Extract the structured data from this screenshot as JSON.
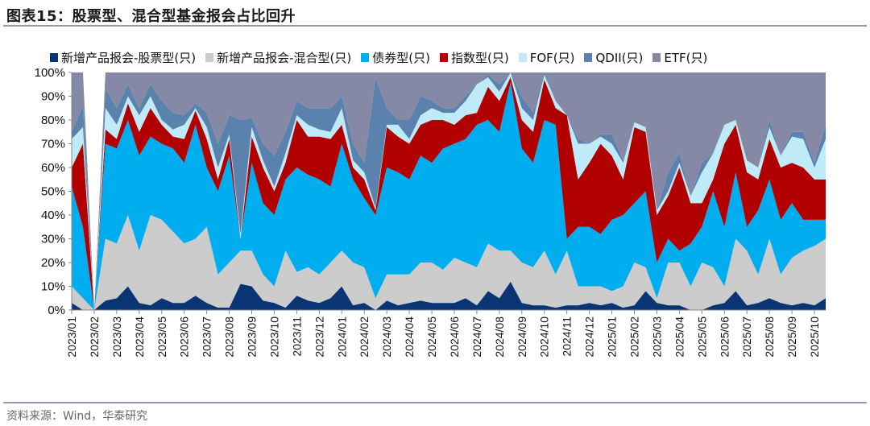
{
  "title": "图表15：股票型、混合型基金报会占比回升",
  "source": "资料来源：Wind，华泰研究",
  "chart_data": {
    "type": "area",
    "stacked": true,
    "title": "图表15：股票型、混合型基金报会占比回升",
    "xlabel": "",
    "ylabel": "",
    "ylim": [
      0,
      100
    ],
    "y_ticks": [
      "0%",
      "10%",
      "20%",
      "30%",
      "40%",
      "50%",
      "60%",
      "70%",
      "80%",
      "90%",
      "100%"
    ],
    "x_tick_labels": [
      "2023/01",
      "2023/02",
      "2023/03",
      "2023/04",
      "2023/05",
      "2023/06",
      "2023/07",
      "2023/08",
      "2023/09",
      "2023/10",
      "2023/11",
      "2023/12",
      "2024/01",
      "2024/02",
      "2024/03",
      "2024/04",
      "2024/05",
      "2024/06",
      "2024/07",
      "2024/08",
      "2024/09",
      "2024/10",
      "2024/11",
      "2024/12",
      "2025/01",
      "2025/02",
      "2025/03",
      "2025/04",
      "2025/05",
      "2025/06",
      "2025/07",
      "2025/08",
      "2025/09",
      "2025/10"
    ],
    "points_per_month": 2,
    "legend_position": "top",
    "series": [
      {
        "name": "新增产品报会-股票型(只)",
        "color": "#0a3574",
        "values": [
          3,
          0,
          0,
          4,
          5,
          10,
          3,
          2,
          5,
          3,
          3,
          6,
          3,
          1,
          1,
          11,
          10,
          4,
          3,
          1,
          6,
          4,
          3,
          5,
          10,
          2,
          3,
          0,
          4,
          2,
          3,
          4,
          3,
          3,
          3,
          5,
          2,
          8,
          5,
          12,
          3,
          2,
          2,
          1,
          2,
          2,
          3,
          2,
          3,
          1,
          2,
          8,
          3,
          2,
          2,
          0,
          0,
          2,
          3,
          8,
          2,
          3,
          5,
          3,
          2,
          3,
          2,
          5
        ]
      },
      {
        "name": "新增产品报会-混合型(只)",
        "color": "#cccccc",
        "values": [
          7,
          5,
          0,
          26,
          23,
          30,
          22,
          38,
          33,
          30,
          25,
          24,
          32,
          14,
          19,
          14,
          15,
          11,
          7,
          24,
          10,
          14,
          12,
          15,
          15,
          18,
          15,
          5,
          11,
          13,
          12,
          16,
          17,
          14,
          19,
          15,
          16,
          20,
          20,
          13,
          17,
          16,
          23,
          14,
          23,
          8,
          7,
          8,
          5,
          9,
          18,
          10,
          2,
          18,
          18,
          10,
          20,
          16,
          7,
          22,
          23,
          12,
          25,
          12,
          20,
          22,
          25,
          25
        ]
      },
      {
        "name": "债券型(只)",
        "color": "#00aeef",
        "values": [
          42,
          30,
          0,
          40,
          40,
          40,
          40,
          33,
          32,
          35,
          34,
          48,
          25,
          35,
          45,
          5,
          37,
          30,
          30,
          30,
          44,
          39,
          40,
          32,
          45,
          35,
          29,
          35,
          45,
          43,
          40,
          45,
          42,
          51,
          48,
          52,
          60,
          52,
          50,
          71,
          48,
          44,
          55,
          63,
          5,
          25,
          25,
          22,
          30,
          30,
          25,
          32,
          15,
          10,
          5,
          18,
          15,
          32,
          25,
          28,
          10,
          27,
          25,
          23,
          23,
          13,
          11,
          8
        ]
      },
      {
        "name": "指数型(只)",
        "color": "#b10000",
        "values": [
          8,
          35,
          0,
          6,
          4,
          7,
          10,
          12,
          8,
          5,
          10,
          6,
          12,
          5,
          7,
          0,
          11,
          15,
          10,
          7,
          20,
          16,
          18,
          20,
          8,
          5,
          8,
          2,
          17,
          15,
          15,
          13,
          18,
          12,
          8,
          10,
          5,
          14,
          13,
          2,
          12,
          13,
          17,
          7,
          52,
          20,
          27,
          38,
          27,
          15,
          32,
          25,
          20,
          18,
          35,
          17,
          10,
          5,
          35,
          20,
          23,
          13,
          17,
          22,
          17,
          22,
          17,
          17
        ]
      },
      {
        "name": "FOF(只)",
        "color": "#bfeaf8",
        "values": [
          12,
          7,
          0,
          9,
          6,
          3,
          7,
          5,
          2,
          3,
          6,
          1,
          5,
          5,
          2,
          2,
          4,
          3,
          2,
          4,
          2,
          5,
          3,
          3,
          7,
          3,
          3,
          1,
          1,
          5,
          2,
          4,
          5,
          3,
          5,
          6,
          12,
          4,
          4,
          2,
          5,
          5,
          2,
          3,
          0,
          15,
          8,
          3,
          5,
          7,
          2,
          2,
          2,
          2,
          2,
          3,
          13,
          11,
          8,
          2,
          5,
          5,
          5,
          5,
          11,
          12,
          5,
          17
        ]
      },
      {
        "name": "QDII(只)",
        "color": "#5b82ad",
        "values": [
          3,
          9,
          0,
          8,
          7,
          5,
          3,
          5,
          8,
          7,
          4,
          2,
          6,
          10,
          8,
          48,
          4,
          7,
          13,
          9,
          6,
          7,
          9,
          10,
          5,
          7,
          4,
          55,
          7,
          2,
          8,
          8,
          3,
          2,
          2,
          2,
          0,
          1,
          3,
          0,
          5,
          3,
          1,
          0,
          0,
          2,
          0,
          1,
          4,
          1,
          0,
          0,
          0,
          8,
          4,
          0,
          4,
          0,
          0,
          0,
          0,
          0,
          3,
          0,
          2,
          3,
          2,
          6
        ]
      },
      {
        "name": "ETF(只)",
        "color": "#8589a6",
        "values": [
          25,
          14,
          0,
          7,
          15,
          5,
          15,
          5,
          12,
          17,
          18,
          13,
          17,
          30,
          18,
          20,
          19,
          30,
          35,
          25,
          12,
          15,
          15,
          15,
          10,
          30,
          38,
          2,
          15,
          20,
          20,
          10,
          12,
          15,
          15,
          10,
          5,
          1,
          5,
          0,
          10,
          17,
          0,
          12,
          18,
          28,
          30,
          26,
          26,
          37,
          21,
          23,
          58,
          42,
          34,
          52,
          38,
          34,
          22,
          20,
          37,
          40,
          20,
          35,
          25,
          25,
          38,
          22
        ]
      }
    ]
  }
}
